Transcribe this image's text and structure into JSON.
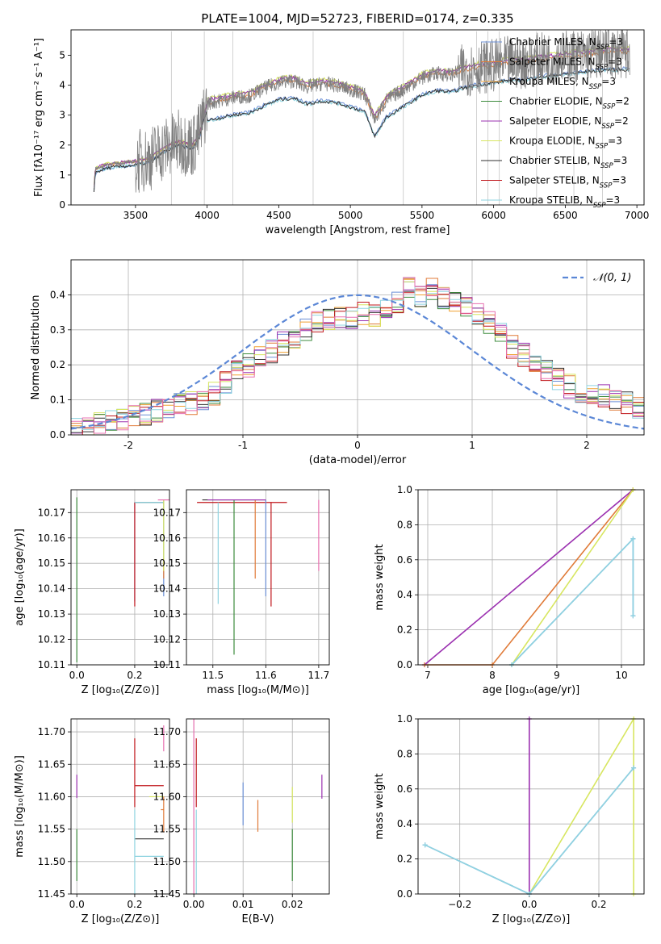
{
  "colors": {
    "chabrier_miles": "#6b8fd6",
    "salpeter_miles": "#e07b39",
    "kroupa_miles": "#f0a030",
    "chabrier_elodie": "#3d8b3d",
    "salpeter_elodie": "#9b30b0",
    "kroupa_elodie": "#d7e660",
    "chabrier_stelib": "#303030",
    "salpeter_stelib": "#c0161b",
    "kroupa_stelib": "#8fd4e0",
    "extra_pink": "#e870b0",
    "data_gray": "#808080",
    "normal_curve": "#5b87d6"
  },
  "chart_data": [
    {
      "id": "spectrum",
      "type": "line",
      "title": "PLATE=1004, MJD=52723, FIBERID=0174, z=0.335",
      "xlabel": "wavelength [Angstrom, rest frame]",
      "ylabel": "Flux [fλ10⁻¹⁷ erg cm⁻² s⁻¹ A⁻¹]",
      "xlim": [
        3050,
        7050
      ],
      "ylim": [
        0,
        5.85
      ],
      "xticks": [
        3500,
        4000,
        4500,
        5000,
        5500,
        6000,
        6500,
        7000
      ],
      "yticks": [
        0,
        1,
        2,
        3,
        4,
        5
      ],
      "grid": false,
      "legend_position": "upper-right",
      "legend": [
        {
          "label": "Chabrier MILES, N",
          "sub": "SSP",
          "suffix": "=3",
          "color_key": "chabrier_miles"
        },
        {
          "label": "Salpeter MILES, N",
          "sub": "SSP",
          "suffix": "=3",
          "color_key": "salpeter_miles"
        },
        {
          "label": "Kroupa MILES, N",
          "sub": "SSP",
          "suffix": "=3",
          "color_key": "kroupa_miles"
        },
        {
          "label": "Chabrier ELODIE, N",
          "sub": "SSP",
          "suffix": "=2",
          "color_key": "chabrier_elodie"
        },
        {
          "label": "Salpeter ELODIE, N",
          "sub": "SSP",
          "suffix": "=2",
          "color_key": "salpeter_elodie"
        },
        {
          "label": "Kroupa ELODIE, N",
          "sub": "SSP",
          "suffix": "=3",
          "color_key": "kroupa_elodie"
        },
        {
          "label": "Chabrier STELIB, N",
          "sub": "SSP",
          "suffix": "=3",
          "color_key": "chabrier_stelib"
        },
        {
          "label": "Salpeter STELIB, N",
          "sub": "SSP",
          "suffix": "=3",
          "color_key": "salpeter_stelib"
        },
        {
          "label": "Kroupa STELIB, N",
          "sub": "SSP",
          "suffix": "=3",
          "color_key": "kroupa_stelib"
        }
      ],
      "continuum_points": [
        [
          3200,
          0.0
        ],
        [
          3220,
          1.2
        ],
        [
          3300,
          1.35
        ],
        [
          3400,
          1.4
        ],
        [
          3500,
          1.45
        ],
        [
          3600,
          1.55
        ],
        [
          3700,
          1.9
        ],
        [
          3800,
          2.1
        ],
        [
          3900,
          2.0
        ],
        [
          3950,
          2.4
        ],
        [
          4000,
          3.4
        ],
        [
          4100,
          3.5
        ],
        [
          4200,
          3.6
        ],
        [
          4300,
          3.65
        ],
        [
          4400,
          3.9
        ],
        [
          4500,
          4.1
        ],
        [
          4600,
          4.15
        ],
        [
          4700,
          3.95
        ],
        [
          4800,
          4.05
        ],
        [
          4900,
          4.0
        ],
        [
          5000,
          3.85
        ],
        [
          5100,
          3.7
        ],
        [
          5170,
          2.85
        ],
        [
          5250,
          3.5
        ],
        [
          5400,
          3.95
        ],
        [
          5500,
          4.25
        ],
        [
          5600,
          4.4
        ],
        [
          5700,
          4.35
        ],
        [
          5800,
          4.5
        ],
        [
          5900,
          4.6
        ],
        [
          6000,
          4.65
        ],
        [
          6100,
          4.75
        ],
        [
          6200,
          4.75
        ],
        [
          6300,
          4.85
        ],
        [
          6400,
          4.9
        ],
        [
          6500,
          4.95
        ],
        [
          6600,
          5.0
        ],
        [
          6700,
          5.05
        ],
        [
          6800,
          5.1
        ],
        [
          6900,
          5.1
        ]
      ]
    },
    {
      "id": "residuals",
      "type": "line",
      "xlabel": "(data-model)/error",
      "ylabel": "Normed distribution",
      "xlim": [
        -2.5,
        2.5
      ],
      "ylim": [
        0,
        0.5
      ],
      "xticks": [
        -2,
        -1,
        0,
        1,
        2
      ],
      "yticks": [
        0.0,
        0.1,
        0.2,
        0.3,
        0.4
      ],
      "grid": true,
      "legend_position": "upper-right",
      "curve_label": "𝒩(0, 1)",
      "bin_edges": [
        -2.5,
        -2.4,
        -2.3,
        -2.2,
        -2.1,
        -2.0,
        -1.9,
        -1.8,
        -1.7,
        -1.6,
        -1.5,
        -1.4,
        -1.3,
        -1.2,
        -1.1,
        -1.0,
        -0.9,
        -0.8,
        -0.7,
        -0.6,
        -0.5,
        -0.4,
        -0.3,
        -0.2,
        -0.1,
        0.0,
        0.1,
        0.2,
        0.3,
        0.4,
        0.5,
        0.6,
        0.7,
        0.8,
        0.9,
        1.0,
        1.1,
        1.2,
        1.3,
        1.4,
        1.5,
        1.6,
        1.7,
        1.8,
        1.9,
        2.0,
        2.1,
        2.2,
        2.3,
        2.4,
        2.5
      ],
      "hist_base": [
        0.015,
        0.02,
        0.03,
        0.035,
        0.045,
        0.05,
        0.06,
        0.07,
        0.08,
        0.085,
        0.09,
        0.1,
        0.12,
        0.15,
        0.18,
        0.2,
        0.22,
        0.24,
        0.26,
        0.28,
        0.3,
        0.32,
        0.33,
        0.34,
        0.33,
        0.35,
        0.34,
        0.36,
        0.38,
        0.42,
        0.4,
        0.42,
        0.39,
        0.38,
        0.36,
        0.35,
        0.32,
        0.29,
        0.25,
        0.23,
        0.2,
        0.18,
        0.16,
        0.14,
        0.12,
        0.12,
        0.11,
        0.1,
        0.09,
        0.08
      ],
      "series_colors": [
        "chabrier_miles",
        "salpeter_miles",
        "kroupa_miles",
        "chabrier_elodie",
        "salpeter_elodie",
        "kroupa_elodie",
        "chabrier_stelib",
        "salpeter_stelib",
        "kroupa_stelib",
        "extra_pink"
      ]
    },
    {
      "id": "age-vs-z",
      "type": "scatter",
      "xlabel": "Z [log₁₀(Z/Z⊙)]",
      "ylabel": "age  [log₁₀(age/yr)]",
      "xlim": [
        -0.02,
        0.32
      ],
      "ylim": [
        10.11,
        10.179
      ],
      "xticks": [
        0.0,
        0.2
      ],
      "xtick_labels": [
        "0.0",
        "0.2"
      ],
      "yticks": [
        10.11,
        10.12,
        10.13,
        10.14,
        10.15,
        10.16,
        10.17
      ],
      "grid": true,
      "segments": [
        {
          "x1": 0.0,
          "y1": 10.111,
          "x2": 0.0,
          "y2": 10.176,
          "color_key": "chabrier_elodie"
        },
        {
          "x1": 0.2,
          "y1": 10.135,
          "x2": 0.2,
          "y2": 10.174,
          "color_key": "chabrier_miles"
        },
        {
          "x1": 0.2,
          "y1": 10.133,
          "x2": 0.2,
          "y2": 10.174,
          "color_key": "salpeter_stelib"
        },
        {
          "x1": 0.2,
          "y1": 10.174,
          "x2": 0.3,
          "y2": 10.174,
          "color_key": "chabrier_stelib"
        },
        {
          "x1": 0.2,
          "y1": 10.174,
          "x2": 0.3,
          "y2": 10.174,
          "color_key": "kroupa_stelib"
        },
        {
          "x1": 0.3,
          "y1": 10.137,
          "x2": 0.3,
          "y2": 10.175,
          "color_key": "chabrier_miles"
        },
        {
          "x1": 0.3,
          "y1": 10.144,
          "x2": 0.3,
          "y2": 10.152,
          "color_key": "salpeter_miles"
        },
        {
          "x1": 0.3,
          "y1": 10.147,
          "x2": 0.3,
          "y2": 10.175,
          "color_key": "kroupa_elodie"
        },
        {
          "x1": 0.28,
          "y1": 10.175,
          "x2": 0.32,
          "y2": 10.175,
          "color_key": "extra_pink"
        }
      ]
    },
    {
      "id": "age-vs-mass",
      "type": "scatter",
      "xlabel": "mass [log₁₀(M/M⊙)]",
      "ylabel": "",
      "xlim": [
        11.45,
        11.72
      ],
      "ylim": [
        10.11,
        10.179
      ],
      "xticks": [
        11.5,
        11.6,
        11.7
      ],
      "xtick_labels": [
        "11.5",
        "11.6",
        "11.7"
      ],
      "yticks": [
        10.11,
        10.12,
        10.13,
        10.14,
        10.15,
        10.16,
        10.17
      ],
      "grid": true,
      "segments": [
        {
          "x1": 11.48,
          "y1": 10.175,
          "x2": 11.6,
          "y2": 10.175,
          "color_key": "chabrier_stelib"
        },
        {
          "x1": 11.47,
          "y1": 10.174,
          "x2": 11.64,
          "y2": 10.174,
          "color_key": "salpeter_stelib"
        },
        {
          "x1": 11.54,
          "y1": 10.114,
          "x2": 11.54,
          "y2": 10.175,
          "color_key": "chabrier_elodie"
        },
        {
          "x1": 11.51,
          "y1": 10.134,
          "x2": 11.51,
          "y2": 10.174,
          "color_key": "kroupa_stelib"
        },
        {
          "x1": 11.58,
          "y1": 10.144,
          "x2": 11.58,
          "y2": 10.175,
          "color_key": "salpeter_miles"
        },
        {
          "x1": 11.6,
          "y1": 10.137,
          "x2": 11.6,
          "y2": 10.175,
          "color_key": "chabrier_miles"
        },
        {
          "x1": 11.61,
          "y1": 10.133,
          "x2": 11.61,
          "y2": 10.174,
          "color_key": "salpeter_stelib"
        },
        {
          "x1": 11.49,
          "y1": 10.175,
          "x2": 11.6,
          "y2": 10.175,
          "color_key": "salpeter_elodie"
        },
        {
          "x1": 11.7,
          "y1": 10.147,
          "x2": 11.7,
          "y2": 10.175,
          "color_key": "extra_pink"
        }
      ]
    },
    {
      "id": "mass-weight-vs-age",
      "type": "line",
      "xlabel": "age  [log₁₀(age/yr)]",
      "ylabel": "mass weight",
      "xlim": [
        6.85,
        10.35
      ],
      "ylim": [
        0,
        1
      ],
      "xticks": [
        7,
        8,
        9,
        10
      ],
      "xtick_labels": [
        "7",
        "8",
        "9",
        "10"
      ],
      "yticks": [
        0.0,
        0.2,
        0.4,
        0.6,
        0.8,
        1.0
      ],
      "grid": true,
      "polylines": [
        {
          "color_key": "salpeter_elodie",
          "points": [
            [
              6.95,
              0.0
            ],
            [
              10.18,
              1.0
            ]
          ]
        },
        {
          "color_key": "salpeter_miles",
          "points": [
            [
              6.95,
              0.0
            ],
            [
              8.0,
              0.0
            ],
            [
              10.18,
              1.0
            ]
          ]
        },
        {
          "color_key": "kroupa_elodie",
          "points": [
            [
              8.3,
              0.0
            ],
            [
              10.18,
              1.0
            ]
          ]
        },
        {
          "color_key": "chabrier_miles",
          "points": [
            [
              8.3,
              0.0
            ],
            [
              10.18,
              0.72
            ],
            [
              10.18,
              0.28
            ]
          ]
        },
        {
          "color_key": "kroupa_stelib",
          "points": [
            [
              8.3,
              0.0
            ],
            [
              10.18,
              0.72
            ],
            [
              10.18,
              0.28
            ]
          ]
        }
      ]
    },
    {
      "id": "mass-vs-z",
      "type": "scatter",
      "xlabel": "Z [log₁₀(Z/Z⊙)]",
      "ylabel": "mass [log₁₀(M/M⊙)]",
      "xlim": [
        -0.02,
        0.32
      ],
      "ylim": [
        11.45,
        11.72
      ],
      "xticks": [
        0.0,
        0.2
      ],
      "xtick_labels": [
        "0.0",
        "0.2"
      ],
      "yticks": [
        11.45,
        11.5,
        11.55,
        11.6,
        11.65,
        11.7
      ],
      "grid": true,
      "segments": [
        {
          "x1": 0.0,
          "y1": 11.598,
          "x2": 0.0,
          "y2": 11.634,
          "color_key": "salpeter_elodie"
        },
        {
          "x1": 0.0,
          "y1": 11.47,
          "x2": 0.0,
          "y2": 11.55,
          "color_key": "chabrier_elodie"
        },
        {
          "x1": 0.2,
          "y1": 11.584,
          "x2": 0.2,
          "y2": 11.69,
          "color_key": "salpeter_stelib"
        },
        {
          "x1": 0.2,
          "y1": 11.617,
          "x2": 0.3,
          "y2": 11.617,
          "color_key": "salpeter_stelib"
        },
        {
          "x1": 0.2,
          "y1": 11.535,
          "x2": 0.3,
          "y2": 11.535,
          "color_key": "chabrier_stelib"
        },
        {
          "x1": 0.2,
          "y1": 11.508,
          "x2": 0.3,
          "y2": 11.508,
          "color_key": "kroupa_stelib"
        },
        {
          "x1": 0.2,
          "y1": 11.45,
          "x2": 0.2,
          "y2": 11.58,
          "color_key": "kroupa_stelib"
        },
        {
          "x1": 0.25,
          "y1": 11.6,
          "x2": 0.3,
          "y2": 11.6,
          "color_key": "kroupa_elodie"
        },
        {
          "x1": 0.3,
          "y1": 11.545,
          "x2": 0.3,
          "y2": 11.6,
          "color_key": "salpeter_miles"
        },
        {
          "x1": 0.29,
          "y1": 11.58,
          "x2": 0.3,
          "y2": 11.58,
          "color_key": "salpeter_miles"
        },
        {
          "x1": 0.3,
          "y1": 11.67,
          "x2": 0.3,
          "y2": 11.71,
          "color_key": "extra_pink"
        }
      ]
    },
    {
      "id": "mass-vs-ebv",
      "type": "scatter",
      "xlabel": "E(B-V)",
      "ylabel": "",
      "xlim": [
        -0.0015,
        0.0275
      ],
      "ylim": [
        11.45,
        11.72
      ],
      "xticks": [
        0.0,
        0.01,
        0.02
      ],
      "xtick_labels": [
        "0.00",
        "0.01",
        "0.02"
      ],
      "yticks": [
        11.45,
        11.5,
        11.55,
        11.6,
        11.65,
        11.7
      ],
      "grid": true,
      "segments": [
        {
          "x1": 0.0,
          "y1": 11.45,
          "x2": 0.0,
          "y2": 11.72,
          "color_key": "extra_pink"
        },
        {
          "x1": 0.0005,
          "y1": 11.584,
          "x2": 0.0005,
          "y2": 11.69,
          "color_key": "salpeter_stelib"
        },
        {
          "x1": 0.0005,
          "y1": 11.45,
          "x2": 0.0005,
          "y2": 11.58,
          "color_key": "kroupa_stelib"
        },
        {
          "x1": 0.01,
          "y1": 11.556,
          "x2": 0.01,
          "y2": 11.622,
          "color_key": "chabrier_miles"
        },
        {
          "x1": 0.013,
          "y1": 11.546,
          "x2": 0.013,
          "y2": 11.595,
          "color_key": "salpeter_miles"
        },
        {
          "x1": 0.02,
          "y1": 11.47,
          "x2": 11.55,
          "y2": 11.55,
          "color_key": "chabrier_elodie",
          "vertical": true
        },
        {
          "x1": 0.02,
          "y1": 11.56,
          "x2": 0.02,
          "y2": 11.615,
          "color_key": "kroupa_elodie"
        },
        {
          "x1": 0.026,
          "y1": 11.597,
          "x2": 0.026,
          "y2": 11.634,
          "color_key": "salpeter_elodie"
        }
      ]
    },
    {
      "id": "mass-weight-vs-z",
      "type": "line",
      "xlabel": "Z [log₁₀(Z/Z⊙)]",
      "ylabel": "mass weight",
      "xlim": [
        -0.32,
        0.33
      ],
      "ylim": [
        0,
        1
      ],
      "xticks": [
        -0.2,
        0.0,
        0.2
      ],
      "xtick_labels": [
        "−0.2",
        "0.0",
        "0.2"
      ],
      "yticks": [
        0.0,
        0.2,
        0.4,
        0.6,
        0.8,
        1.0
      ],
      "grid": true,
      "polylines": [
        {
          "color_key": "salpeter_elodie",
          "points": [
            [
              0.0,
              1.0
            ],
            [
              0.0,
              0.0
            ]
          ]
        },
        {
          "color_key": "kroupa_elodie",
          "points": [
            [
              0.0,
              0.0
            ],
            [
              0.3,
              1.0
            ],
            [
              0.3,
              0.0
            ]
          ]
        },
        {
          "color_key": "chabrier_miles",
          "points": [
            [
              -0.3,
              0.28
            ],
            [
              0.0,
              0.0
            ],
            [
              0.3,
              0.72
            ]
          ]
        },
        {
          "color_key": "kroupa_stelib",
          "points": [
            [
              -0.3,
              0.28
            ],
            [
              0.0,
              0.0
            ],
            [
              0.3,
              0.72
            ]
          ]
        }
      ]
    }
  ]
}
